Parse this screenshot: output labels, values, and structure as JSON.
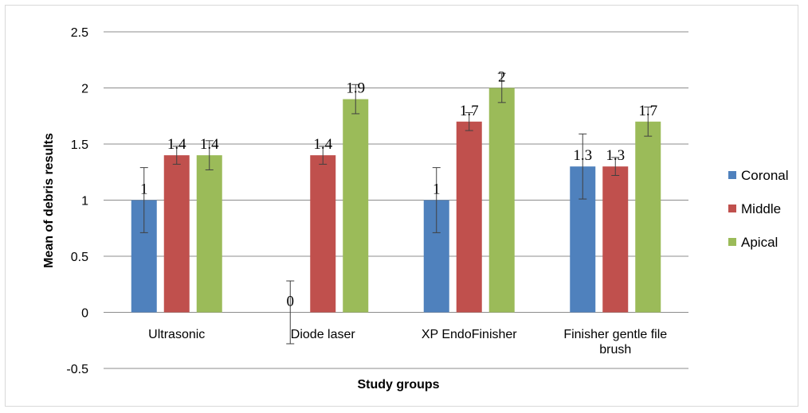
{
  "chart_data": {
    "type": "bar",
    "title": "",
    "xlabel": "Study groups",
    "ylabel": "Mean of debris results",
    "ylim": [
      -0.5,
      2.5
    ],
    "yticks": [
      "2.5",
      "2",
      "1.5",
      "1",
      "0.5",
      "0",
      "-0.5"
    ],
    "categories": [
      [
        "Ultrasonic"
      ],
      [
        "Diode laser"
      ],
      [
        "XP EndoFinisher"
      ],
      [
        "Finisher gentle file",
        "brush"
      ]
    ],
    "series": [
      {
        "name": "Coronal",
        "color": "#4f81bd",
        "values": [
          1,
          0,
          1,
          1.3
        ],
        "labels": [
          "1",
          "0",
          "1",
          "1.3"
        ],
        "errors": [
          0.29,
          0.28,
          0.29,
          0.29
        ]
      },
      {
        "name": "Middle",
        "color": "#c0504d",
        "values": [
          1.4,
          1.4,
          1.7,
          1.3
        ],
        "labels": [
          "1.4",
          "1.4",
          "1.7",
          "1.3"
        ],
        "errors": [
          0.08,
          0.08,
          0.08,
          0.08
        ]
      },
      {
        "name": "Apical",
        "color": "#9bbb59",
        "values": [
          1.4,
          1.9,
          2,
          1.7
        ],
        "labels": [
          "1.4",
          "1.9",
          "2",
          "1.7"
        ],
        "errors": [
          0.13,
          0.13,
          0.13,
          0.13
        ]
      }
    ],
    "grid": true,
    "legend_position": "right"
  }
}
